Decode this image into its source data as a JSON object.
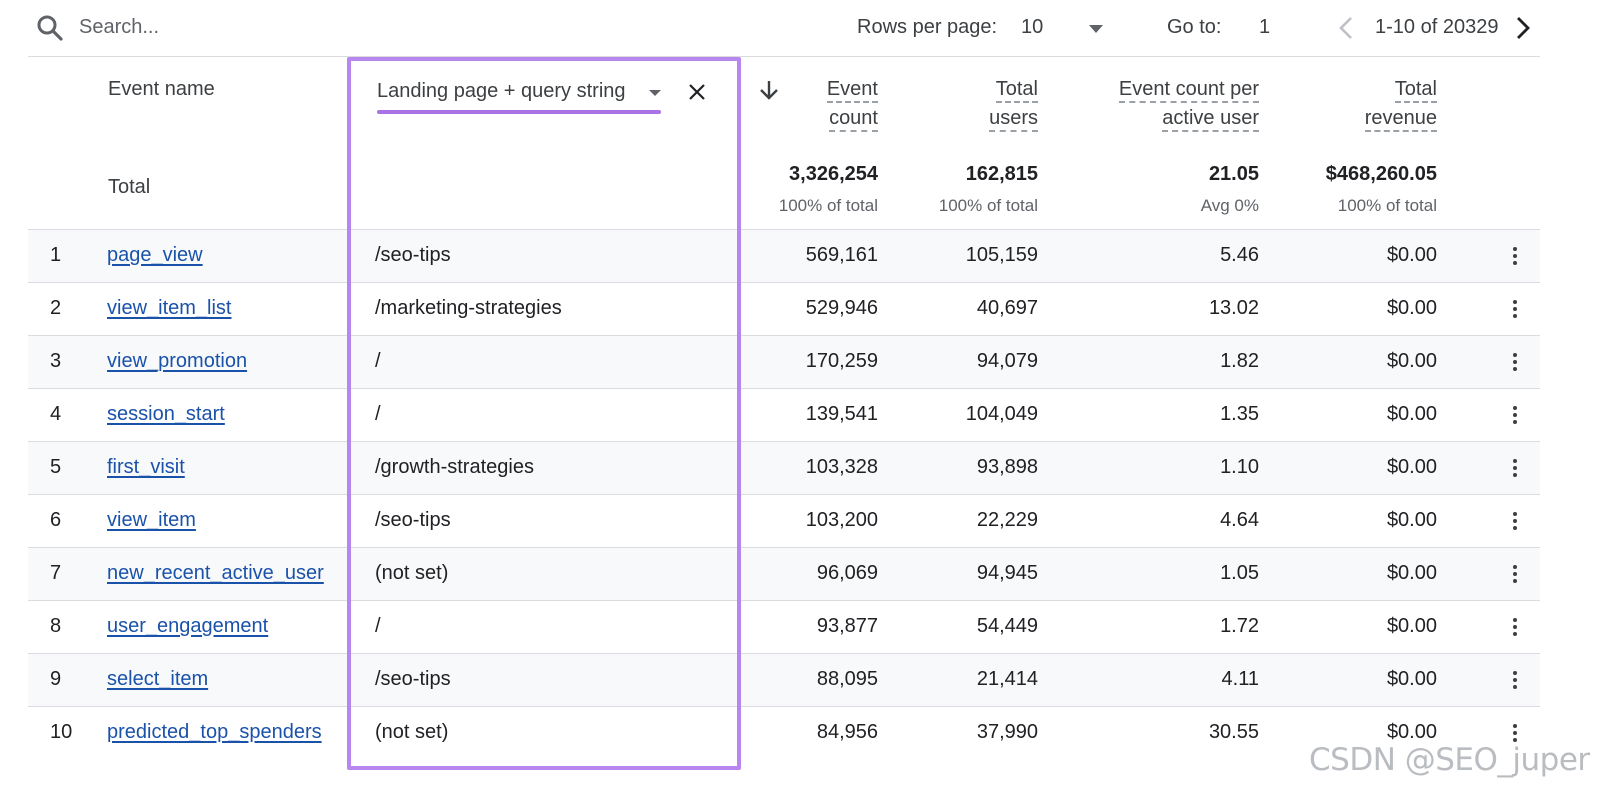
{
  "toolbar": {
    "search_placeholder": "Search...",
    "rows_per_page_label": "Rows per page:",
    "rows_per_page_value": "10",
    "go_to_label": "Go to:",
    "go_to_value": "1",
    "range_text": "1-10 of 20329"
  },
  "columns": {
    "event_name": "Event name",
    "dimension": "Landing page + query string",
    "event_count_1": "Event",
    "event_count_2": "count",
    "total_users_1": "Total",
    "total_users_2": "users",
    "per_user_1": "Event count per",
    "per_user_2": "active user",
    "revenue_1": "Total",
    "revenue_2": "revenue"
  },
  "totals": {
    "label": "Total",
    "event_count": "3,326,254",
    "event_count_sub": "100% of total",
    "total_users": "162,815",
    "total_users_sub": "100% of total",
    "per_user": "21.05",
    "per_user_sub": "Avg 0%",
    "revenue": "$468,260.05",
    "revenue_sub": "100% of total"
  },
  "rows": [
    {
      "idx": "1",
      "name": "page_view",
      "dim": "/seo-tips",
      "events": "569,161",
      "users": "105,159",
      "per_user": "5.46",
      "revenue": "$0.00"
    },
    {
      "idx": "2",
      "name": "view_item_list",
      "dim": "/marketing-strategies",
      "events": "529,946",
      "users": "40,697",
      "per_user": "13.02",
      "revenue": "$0.00"
    },
    {
      "idx": "3",
      "name": "view_promotion",
      "dim": "/",
      "events": "170,259",
      "users": "94,079",
      "per_user": "1.82",
      "revenue": "$0.00"
    },
    {
      "idx": "4",
      "name": "session_start",
      "dim": "/",
      "events": "139,541",
      "users": "104,049",
      "per_user": "1.35",
      "revenue": "$0.00"
    },
    {
      "idx": "5",
      "name": "first_visit",
      "dim": "/growth-strategies",
      "events": "103,328",
      "users": "93,898",
      "per_user": "1.10",
      "revenue": "$0.00"
    },
    {
      "idx": "6",
      "name": "view_item",
      "dim": "/seo-tips",
      "events": "103,200",
      "users": "22,229",
      "per_user": "4.64",
      "revenue": "$0.00"
    },
    {
      "idx": "7",
      "name": "new_recent_active_user",
      "dim": "(not set)",
      "events": "96,069",
      "users": "94,945",
      "per_user": "1.05",
      "revenue": "$0.00"
    },
    {
      "idx": "8",
      "name": "user_engagement",
      "dim": "/",
      "events": "93,877",
      "users": "54,449",
      "per_user": "1.72",
      "revenue": "$0.00"
    },
    {
      "idx": "9",
      "name": "select_item",
      "dim": "/seo-tips",
      "events": "88,095",
      "users": "21,414",
      "per_user": "4.11",
      "revenue": "$0.00"
    },
    {
      "idx": "10",
      "name": "predicted_top_spenders",
      "dim": "(not set)",
      "events": "84,956",
      "users": "37,990",
      "per_user": "30.55",
      "revenue": "$0.00"
    }
  ],
  "watermark": "CSDN @SEO_juper",
  "colors": {
    "highlight": "#b786ef",
    "link": "#1a52a9",
    "divider": "#dadce0"
  }
}
